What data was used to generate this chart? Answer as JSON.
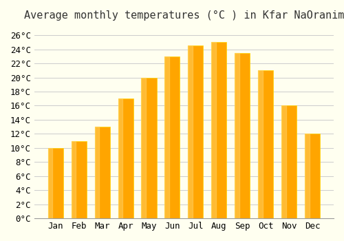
{
  "title": "Average monthly temperatures (°C ) in Kfar NaOranim",
  "months": [
    "Jan",
    "Feb",
    "Mar",
    "Apr",
    "May",
    "Jun",
    "Jul",
    "Aug",
    "Sep",
    "Oct",
    "Nov",
    "Dec"
  ],
  "temperatures": [
    10.0,
    11.0,
    13.0,
    17.0,
    20.0,
    23.0,
    24.5,
    25.0,
    23.5,
    21.0,
    16.0,
    12.0
  ],
  "bar_color_face": "#FFA500",
  "bar_color_edge": "#FFD700",
  "background_color": "#FFFFF0",
  "grid_color": "#CCCCCC",
  "ylim": [
    0,
    27
  ],
  "yticks": [
    0,
    2,
    4,
    6,
    8,
    10,
    12,
    14,
    16,
    18,
    20,
    22,
    24,
    26
  ],
  "title_fontsize": 11,
  "tick_fontsize": 9,
  "font_family": "monospace"
}
